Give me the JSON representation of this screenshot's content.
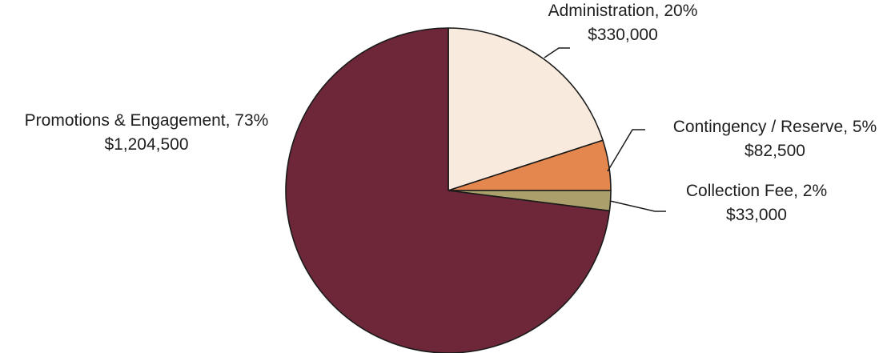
{
  "chart_data": {
    "type": "pie",
    "slices": [
      {
        "name": "Administration",
        "percent_label": "20%",
        "amount": "$330,000",
        "value": 330000,
        "color": "#f8eadc"
      },
      {
        "name": "Contingency / Reserve",
        "percent_label": "5%",
        "amount": "$82,500",
        "value": 82500,
        "color": "#e3874f"
      },
      {
        "name": "Collection Fee",
        "percent_label": "2%",
        "amount": "$33,000",
        "value": 33000,
        "color": "#aba06c"
      },
      {
        "name": "Promotions & Engagement",
        "percent_label": "73%",
        "amount": "$1,204,500",
        "value": 1204500,
        "color": "#6e2738"
      }
    ]
  }
}
